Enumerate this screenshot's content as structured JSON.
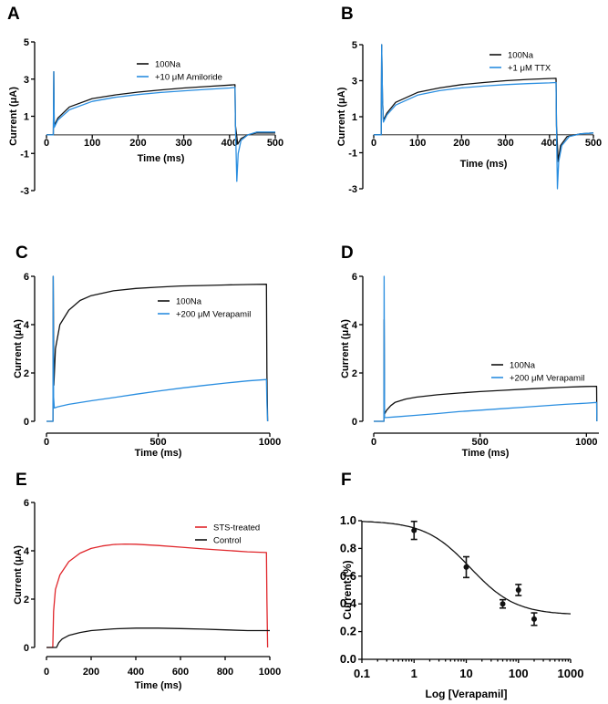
{
  "figure": {
    "colors": {
      "black": "#111111",
      "blue": "#2a8ee0",
      "red": "#e0262b",
      "grey": "#555555"
    }
  },
  "chart_data": [
    {
      "id": "A",
      "type": "line",
      "panel_label": "A",
      "title": "",
      "xlabel": "Time (ms)",
      "ylabel": "Current (μA)",
      "xlim": [
        0,
        500
      ],
      "ylim": [
        -3,
        5
      ],
      "xticks": [
        0,
        100,
        200,
        300,
        400,
        500
      ],
      "yticks": [
        5,
        3,
        1,
        -1,
        -3
      ],
      "xaxis_at_zero": true,
      "legend": {
        "position": "top-center",
        "entries": [
          "100Na",
          "+10 μM Amiloride"
        ]
      },
      "series": [
        {
          "name": "100Na",
          "color": "#111111",
          "points": [
            [
              0,
              0
            ],
            [
              15,
              0
            ],
            [
              16,
              3.4
            ],
            [
              17,
              0.5
            ],
            [
              25,
              0.9
            ],
            [
              50,
              1.5
            ],
            [
              100,
              1.95
            ],
            [
              150,
              2.15
            ],
            [
              200,
              2.3
            ],
            [
              250,
              2.42
            ],
            [
              300,
              2.52
            ],
            [
              350,
              2.6
            ],
            [
              400,
              2.68
            ],
            [
              412,
              2.7
            ],
            [
              413,
              0.5
            ],
            [
              418,
              -0.5
            ],
            [
              425,
              -0.2
            ],
            [
              440,
              0.0
            ],
            [
              460,
              0.1
            ],
            [
              500,
              0.1
            ]
          ]
        },
        {
          "name": "+10 μM Amiloride",
          "color": "#2a8ee0",
          "points": [
            [
              0,
              0
            ],
            [
              15,
              0
            ],
            [
              16,
              3.4
            ],
            [
              17,
              0.4
            ],
            [
              25,
              0.8
            ],
            [
              50,
              1.35
            ],
            [
              100,
              1.8
            ],
            [
              150,
              2.02
            ],
            [
              200,
              2.17
            ],
            [
              250,
              2.28
            ],
            [
              300,
              2.37
            ],
            [
              350,
              2.45
            ],
            [
              400,
              2.52
            ],
            [
              412,
              2.55
            ],
            [
              413,
              0.5
            ],
            [
              416,
              -2.5
            ],
            [
              419,
              -1.0
            ],
            [
              425,
              -0.3
            ],
            [
              440,
              0.0
            ],
            [
              460,
              0.15
            ],
            [
              500,
              0.15
            ]
          ]
        }
      ]
    },
    {
      "id": "B",
      "type": "line",
      "panel_label": "B",
      "title": "",
      "xlabel": "Time (ms)",
      "ylabel": "Current (μA)",
      "xlim": [
        0,
        500
      ],
      "ylim": [
        -3,
        5
      ],
      "xticks": [
        0,
        100,
        200,
        300,
        400,
        500
      ],
      "yticks": [
        5,
        3,
        1,
        -1,
        -3
      ],
      "xaxis_at_zero": true,
      "legend": {
        "position": "top-right",
        "entries": [
          "100Na",
          "+1 μM TTX"
        ]
      },
      "series": [
        {
          "name": "100Na",
          "color": "#111111",
          "points": [
            [
              0,
              0
            ],
            [
              17,
              0
            ],
            [
              18,
              5.0
            ],
            [
              20,
              2.0
            ],
            [
              22,
              0.8
            ],
            [
              30,
              1.2
            ],
            [
              50,
              1.8
            ],
            [
              100,
              2.35
            ],
            [
              150,
              2.6
            ],
            [
              200,
              2.78
            ],
            [
              250,
              2.9
            ],
            [
              300,
              3.0
            ],
            [
              350,
              3.07
            ],
            [
              400,
              3.12
            ],
            [
              415,
              3.13
            ],
            [
              416,
              0.5
            ],
            [
              420,
              -1.5
            ],
            [
              425,
              -0.6
            ],
            [
              440,
              -0.1
            ],
            [
              470,
              0.05
            ],
            [
              500,
              0.1
            ]
          ]
        },
        {
          "name": "+1 μM TTX",
          "color": "#2a8ee0",
          "points": [
            [
              0,
              0
            ],
            [
              17,
              0
            ],
            [
              18,
              5.0
            ],
            [
              20,
              2.0
            ],
            [
              22,
              0.7
            ],
            [
              30,
              1.1
            ],
            [
              50,
              1.65
            ],
            [
              100,
              2.2
            ],
            [
              150,
              2.45
            ],
            [
              200,
              2.6
            ],
            [
              250,
              2.7
            ],
            [
              300,
              2.78
            ],
            [
              350,
              2.84
            ],
            [
              400,
              2.88
            ],
            [
              415,
              2.9
            ],
            [
              416,
              0.5
            ],
            [
              418,
              -3.0
            ],
            [
              421,
              -1.5
            ],
            [
              428,
              -0.6
            ],
            [
              445,
              -0.1
            ],
            [
              470,
              0.05
            ],
            [
              500,
              0.1
            ]
          ]
        }
      ]
    },
    {
      "id": "C",
      "type": "line",
      "panel_label": "C",
      "title": "",
      "xlabel": "Time (ms)",
      "ylabel": "Current (μA)",
      "xlim": [
        0,
        1000
      ],
      "ylim": [
        0,
        6
      ],
      "xticks": [
        0,
        500,
        1000
      ],
      "yticks": [
        6,
        4,
        2,
        0
      ],
      "xaxis_at_zero": false,
      "legend": {
        "position": "top-right",
        "entries": [
          "100Na",
          "+200 μM Verapamil"
        ]
      },
      "series": [
        {
          "name": "100Na",
          "color": "#111111",
          "points": [
            [
              0,
              0
            ],
            [
              29,
              0
            ],
            [
              30,
              6.0
            ],
            [
              33,
              1.5
            ],
            [
              40,
              3.0
            ],
            [
              60,
              4.0
            ],
            [
              100,
              4.6
            ],
            [
              150,
              5.0
            ],
            [
              200,
              5.2
            ],
            [
              300,
              5.4
            ],
            [
              400,
              5.5
            ],
            [
              500,
              5.55
            ],
            [
              600,
              5.6
            ],
            [
              700,
              5.62
            ],
            [
              800,
              5.64
            ],
            [
              900,
              5.66
            ],
            [
              985,
              5.67
            ],
            [
              987,
              2.0
            ],
            [
              990,
              0
            ]
          ]
        },
        {
          "name": "+200 μM Verapamil",
          "color": "#2a8ee0",
          "points": [
            [
              0,
              0
            ],
            [
              29,
              0
            ],
            [
              30,
              6.0
            ],
            [
              32,
              1.0
            ],
            [
              35,
              0.55
            ],
            [
              50,
              0.6
            ],
            [
              100,
              0.7
            ],
            [
              200,
              0.85
            ],
            [
              300,
              0.98
            ],
            [
              400,
              1.12
            ],
            [
              500,
              1.25
            ],
            [
              600,
              1.37
            ],
            [
              700,
              1.48
            ],
            [
              800,
              1.58
            ],
            [
              900,
              1.67
            ],
            [
              985,
              1.73
            ],
            [
              987,
              0.8
            ],
            [
              990,
              0
            ]
          ]
        }
      ]
    },
    {
      "id": "D",
      "type": "line",
      "panel_label": "D",
      "title": "",
      "xlabel": "Time (ms)",
      "ylabel": "Current (μA)",
      "xlim": [
        0,
        1050
      ],
      "ylim": [
        0,
        6
      ],
      "xticks": [
        0,
        500,
        1000
      ],
      "yticks": [
        6,
        4,
        2,
        0
      ],
      "xaxis_at_zero": false,
      "legend": {
        "position": "right",
        "entries": [
          "100Na",
          "+200 μM Verapamil"
        ]
      },
      "series": [
        {
          "name": "100Na",
          "color": "#111111",
          "points": [
            [
              0,
              0
            ],
            [
              48,
              0
            ],
            [
              49,
              4.2
            ],
            [
              51,
              0.3
            ],
            [
              60,
              0.45
            ],
            [
              80,
              0.65
            ],
            [
              100,
              0.78
            ],
            [
              150,
              0.92
            ],
            [
              200,
              1.0
            ],
            [
              300,
              1.1
            ],
            [
              400,
              1.17
            ],
            [
              500,
              1.23
            ],
            [
              600,
              1.28
            ],
            [
              700,
              1.33
            ],
            [
              800,
              1.37
            ],
            [
              900,
              1.41
            ],
            [
              1000,
              1.44
            ],
            [
              1048,
              1.45
            ],
            [
              1049,
              0
            ]
          ]
        },
        {
          "name": "+200 μM Verapamil",
          "color": "#2a8ee0",
          "points": [
            [
              0,
              0
            ],
            [
              48,
              0
            ],
            [
              49,
              6.0
            ],
            [
              51,
              0.15
            ],
            [
              100,
              0.18
            ],
            [
              200,
              0.25
            ],
            [
              300,
              0.32
            ],
            [
              400,
              0.4
            ],
            [
              500,
              0.46
            ],
            [
              600,
              0.52
            ],
            [
              700,
              0.58
            ],
            [
              800,
              0.64
            ],
            [
              900,
              0.7
            ],
            [
              1000,
              0.75
            ],
            [
              1048,
              0.78
            ],
            [
              1049,
              0
            ]
          ]
        }
      ]
    },
    {
      "id": "E",
      "type": "line",
      "panel_label": "E",
      "title": "",
      "xlabel": "Time (ms)",
      "ylabel": "Current (μA)",
      "xlim": [
        0,
        1000
      ],
      "ylim": [
        0,
        6
      ],
      "xticks": [
        0,
        200,
        400,
        600,
        800,
        1000
      ],
      "yticks": [
        6,
        4,
        2,
        0
      ],
      "xaxis_at_zero": false,
      "legend": {
        "position": "top-right",
        "entries": [
          "STS-treated",
          "Control"
        ]
      },
      "series": [
        {
          "name": "STS-treated",
          "color": "#e0262b",
          "points": [
            [
              0,
              0
            ],
            [
              28,
              0
            ],
            [
              32,
              1.5
            ],
            [
              40,
              2.4
            ],
            [
              60,
              3.0
            ],
            [
              100,
              3.55
            ],
            [
              150,
              3.9
            ],
            [
              200,
              4.1
            ],
            [
              250,
              4.2
            ],
            [
              300,
              4.26
            ],
            [
              350,
              4.28
            ],
            [
              400,
              4.27
            ],
            [
              500,
              4.22
            ],
            [
              600,
              4.15
            ],
            [
              700,
              4.08
            ],
            [
              800,
              4.02
            ],
            [
              900,
              3.96
            ],
            [
              985,
              3.93
            ],
            [
              987,
              2.0
            ],
            [
              990,
              0
            ]
          ]
        },
        {
          "name": "Control",
          "color": "#111111",
          "points": [
            [
              0,
              0
            ],
            [
              45,
              0
            ],
            [
              55,
              0.2
            ],
            [
              70,
              0.35
            ],
            [
              100,
              0.5
            ],
            [
              150,
              0.62
            ],
            [
              200,
              0.7
            ],
            [
              300,
              0.77
            ],
            [
              400,
              0.8
            ],
            [
              500,
              0.8
            ],
            [
              600,
              0.78
            ],
            [
              700,
              0.76
            ],
            [
              800,
              0.73
            ],
            [
              900,
              0.7
            ],
            [
              1000,
              0.7
            ]
          ]
        }
      ]
    },
    {
      "id": "F",
      "type": "scatter",
      "panel_label": "F",
      "title": "",
      "xlabel": "Log [Verapamil]",
      "ylabel": "Current (%)",
      "xscale": "log",
      "xlim": [
        0.1,
        1000
      ],
      "ylim": [
        0,
        1.0
      ],
      "xticks": [
        "0.1",
        "1",
        "10",
        "100",
        "1000"
      ],
      "xtick_values": [
        0.1,
        1,
        10,
        100,
        1000
      ],
      "yticks": [
        "1.0",
        "0.8",
        "0.6",
        "0.4",
        "0.2",
        "0.0"
      ],
      "ytick_values": [
        1.0,
        0.8,
        0.6,
        0.4,
        0.2,
        0.0
      ],
      "points": [
        {
          "x": 1,
          "y": 0.93,
          "err": 0.065
        },
        {
          "x": 10,
          "y": 0.665,
          "err": 0.075
        },
        {
          "x": 50,
          "y": 0.4,
          "err": 0.03
        },
        {
          "x": 100,
          "y": 0.5,
          "err": 0.04
        },
        {
          "x": 200,
          "y": 0.29,
          "err": 0.045
        }
      ],
      "fit": {
        "type": "sigmoid",
        "top": 1.0,
        "bottom": 0.32,
        "ic50": 12,
        "hill": 1.0
      },
      "series_color": "#111111"
    }
  ]
}
